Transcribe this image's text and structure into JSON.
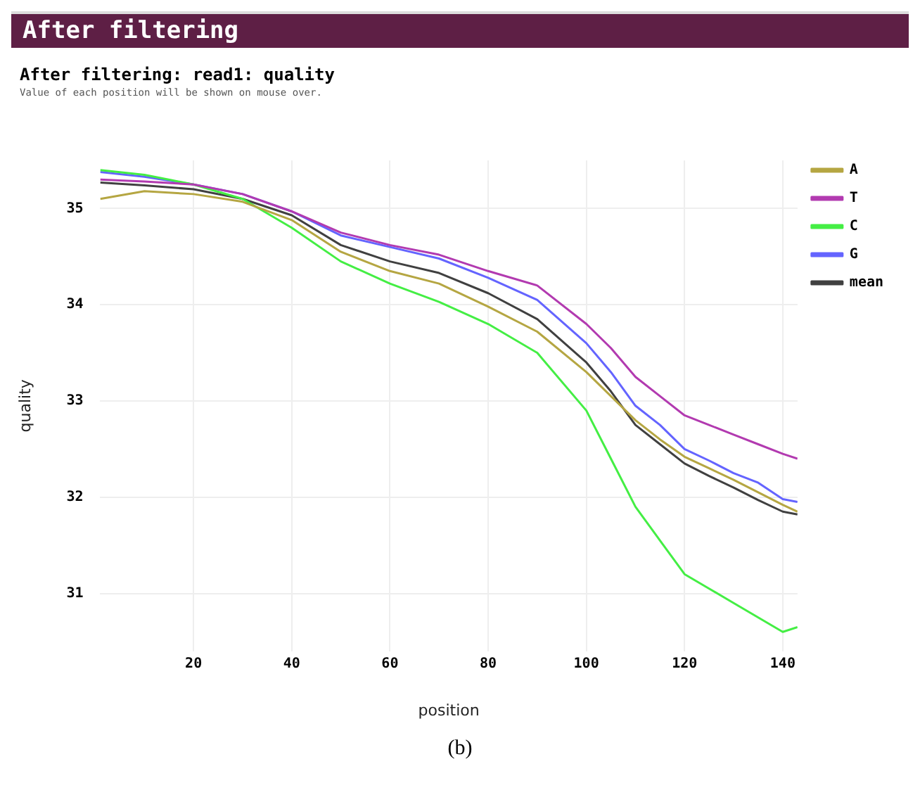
{
  "chart_data": {
    "type": "line",
    "title": "After filtering",
    "subtitle": "After filtering: read1: quality",
    "annotations": [
      "Value of each position will be shown on mouse over.",
      "(b)"
    ],
    "xlabel": "position",
    "ylabel": "quality",
    "x": [
      1,
      10,
      20,
      30,
      40,
      50,
      60,
      70,
      80,
      90,
      100,
      105,
      110,
      115,
      120,
      125,
      130,
      135,
      140,
      143
    ],
    "series": [
      {
        "name": "A",
        "color": "#b5a642",
        "values": [
          35.1,
          35.18,
          35.15,
          35.07,
          34.88,
          34.55,
          34.35,
          34.22,
          33.98,
          33.72,
          33.3,
          33.05,
          32.8,
          32.6,
          32.42,
          32.3,
          32.18,
          32.05,
          31.92,
          31.85
        ]
      },
      {
        "name": "T",
        "color": "#b23ab0",
        "values": [
          35.3,
          35.28,
          35.25,
          35.15,
          34.97,
          34.75,
          34.62,
          34.52,
          34.35,
          34.2,
          33.8,
          33.55,
          33.25,
          33.05,
          32.85,
          32.75,
          32.65,
          32.55,
          32.45,
          32.4
        ]
      },
      {
        "name": "C",
        "color": "#44ee44",
        "values": [
          35.4,
          35.35,
          35.25,
          35.1,
          34.8,
          34.45,
          34.22,
          34.03,
          33.8,
          33.5,
          32.9,
          32.4,
          31.9,
          31.55,
          31.2,
          31.05,
          30.9,
          30.75,
          30.6,
          30.65
        ]
      },
      {
        "name": "G",
        "color": "#6464ff",
        "values": [
          35.38,
          35.33,
          35.25,
          35.15,
          34.97,
          34.72,
          34.6,
          34.48,
          34.28,
          34.05,
          33.6,
          33.3,
          32.95,
          32.75,
          32.5,
          32.38,
          32.25,
          32.15,
          31.98,
          31.95
        ]
      },
      {
        "name": "mean",
        "color": "#404040",
        "values": [
          35.27,
          35.24,
          35.2,
          35.1,
          34.93,
          34.62,
          34.45,
          34.33,
          34.12,
          33.85,
          33.4,
          33.1,
          32.75,
          32.55,
          32.35,
          32.22,
          32.1,
          31.97,
          31.85,
          31.82
        ]
      }
    ],
    "xlim": [
      1,
      143
    ],
    "xticks": [
      20,
      40,
      60,
      80,
      100,
      120,
      140
    ],
    "ylim": [
      30.4,
      35.5
    ],
    "yticks": [
      31,
      32,
      33,
      34,
      35
    ],
    "grid": true,
    "legend": "top right",
    "marker": "none",
    "line_style": "solid"
  }
}
